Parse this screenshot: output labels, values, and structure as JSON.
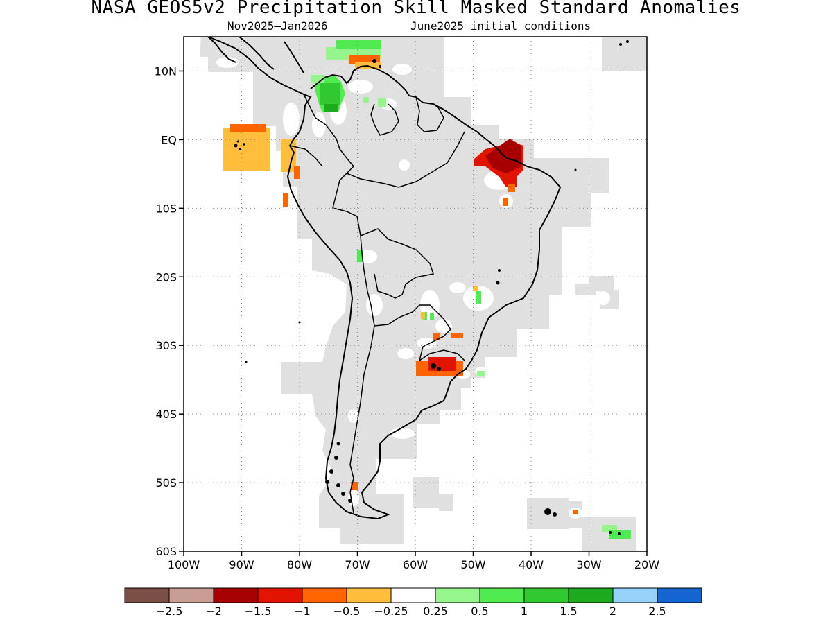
{
  "title": "NASA_GEOS5v2 Precipitation Skill Masked Standard Anomalies",
  "subtitle_left": "Nov2025–Jan2026",
  "subtitle_right": "June2025 initial conditions",
  "map": {
    "lon_range": [
      -100,
      -20
    ],
    "lat_range": [
      -60,
      15
    ],
    "lat_ticks": [
      {
        "v": 10,
        "label": "10N"
      },
      {
        "v": 0,
        "label": "EQ"
      },
      {
        "v": -10,
        "label": "10S"
      },
      {
        "v": -20,
        "label": "20S"
      },
      {
        "v": -30,
        "label": "30S"
      },
      {
        "v": -40,
        "label": "40S"
      },
      {
        "v": -50,
        "label": "50S"
      },
      {
        "v": -60,
        "label": "60S"
      }
    ],
    "lon_ticks": [
      {
        "v": -100,
        "label": "100W"
      },
      {
        "v": -90,
        "label": "90W"
      },
      {
        "v": -80,
        "label": "80W"
      },
      {
        "v": -70,
        "label": "70W"
      },
      {
        "v": -60,
        "label": "60W"
      },
      {
        "v": -50,
        "label": "50W"
      },
      {
        "v": -40,
        "label": "40W"
      },
      {
        "v": -30,
        "label": "30W"
      },
      {
        "v": -20,
        "label": "20W"
      }
    ],
    "grid": "dotted",
    "mask_color": "#e0e0e0",
    "land_outline_color": "#000000"
  },
  "colorbar": {
    "colors": [
      "#7a4e44",
      "#c79d93",
      "#a60000",
      "#e01400",
      "#ff6400",
      "#ffbe3c",
      "#ffffff",
      "#96f58c",
      "#50eb50",
      "#32c832",
      "#1eaa1e",
      "#96d2fa",
      "#1464d2"
    ],
    "labels": [
      "−2.5",
      "−2",
      "−1.5",
      "−1",
      "−0.5",
      "−0.25",
      "0.25",
      "0.5",
      "1",
      "1.5",
      "2",
      "2.5"
    ]
  }
}
